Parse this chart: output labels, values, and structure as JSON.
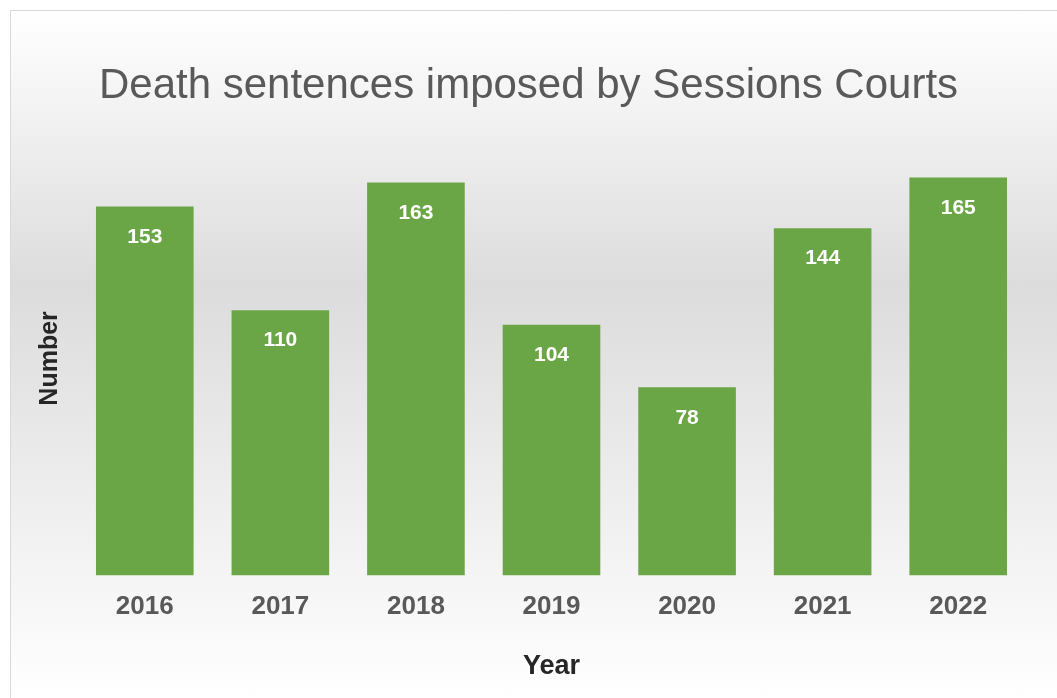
{
  "chart_data": {
    "type": "bar",
    "title": "Death sentences imposed by Sessions Courts",
    "xlabel": "Year",
    "ylabel": "Number",
    "categories": [
      "2016",
      "2017",
      "2018",
      "2019",
      "2020",
      "2021",
      "2022"
    ],
    "values": [
      153,
      110,
      163,
      104,
      78,
      144,
      165
    ],
    "color": "#6aa645",
    "data_labels": true,
    "grid": false,
    "legend": false
  }
}
